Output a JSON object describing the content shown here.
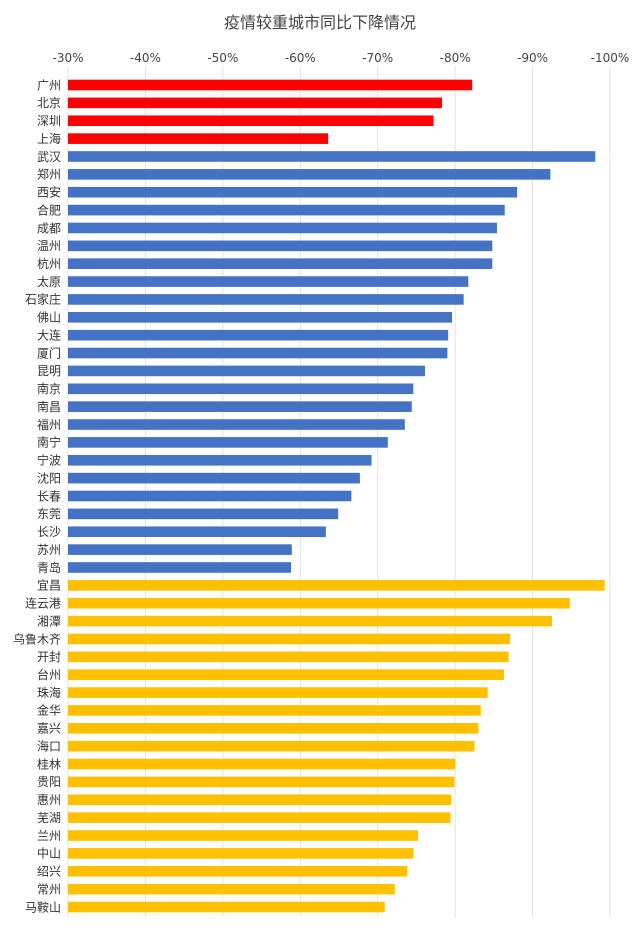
{
  "chart_data": {
    "type": "bar",
    "orientation": "horizontal",
    "title": "疫情较重城市同比下降情况",
    "xlabel": "",
    "ylabel": "",
    "x_axis_position": "top",
    "x_ticks": [
      "-30%",
      "-40%",
      "-50%",
      "-60%",
      "-70%",
      "-80%",
      "-90%",
      "-100%"
    ],
    "xlim": [
      -30,
      -100
    ],
    "grid": true,
    "legend": "none",
    "categories": [
      "广州",
      "北京",
      "深圳",
      "上海",
      "武汉",
      "郑州",
      "西安",
      "合肥",
      "成都",
      "温州",
      "杭州",
      "太原",
      "石家庄",
      "佛山",
      "大连",
      "厦门",
      "昆明",
      "南京",
      "南昌",
      "福州",
      "南宁",
      "宁波",
      "沈阳",
      "长春",
      "东莞",
      "长沙",
      "苏州",
      "青岛",
      "宜昌",
      "连云港",
      "湘潭",
      "乌鲁木齐",
      "开封",
      "台州",
      "珠海",
      "金华",
      "嘉兴",
      "海口",
      "桂林",
      "贵阳",
      "惠州",
      "芜湖",
      "兰州",
      "中山",
      "绍兴",
      "常州",
      "马鞍山"
    ],
    "values": [
      -82.2,
      -78.3,
      -77.2,
      -63.6,
      -98.1,
      -92.3,
      -88.0,
      -86.4,
      -85.4,
      -84.8,
      -84.8,
      -81.7,
      -81.1,
      -79.6,
      -79.1,
      -79.0,
      -76.1,
      -74.6,
      -74.4,
      -73.5,
      -71.3,
      -69.2,
      -67.7,
      -66.6,
      -64.9,
      -63.3,
      -58.9,
      -58.8,
      -99.3,
      -94.8,
      -92.5,
      -87.1,
      -86.9,
      -86.3,
      -84.2,
      -83.3,
      -83.0,
      -82.5,
      -80.0,
      -79.9,
      -79.5,
      -79.4,
      -75.2,
      -74.6,
      -73.8,
      -72.2,
      -70.9
    ],
    "colors": {
      "tier1": "#ff0000",
      "major": "#4472c4",
      "other": "#ffc000",
      "grid": "#e3e3e3",
      "text": "#444444"
    },
    "groups": [
      {
        "color_key": "tier1",
        "start": 0,
        "count": 4
      },
      {
        "color_key": "major",
        "start": 4,
        "count": 24
      },
      {
        "color_key": "other",
        "start": 28,
        "count": 19
      }
    ]
  }
}
